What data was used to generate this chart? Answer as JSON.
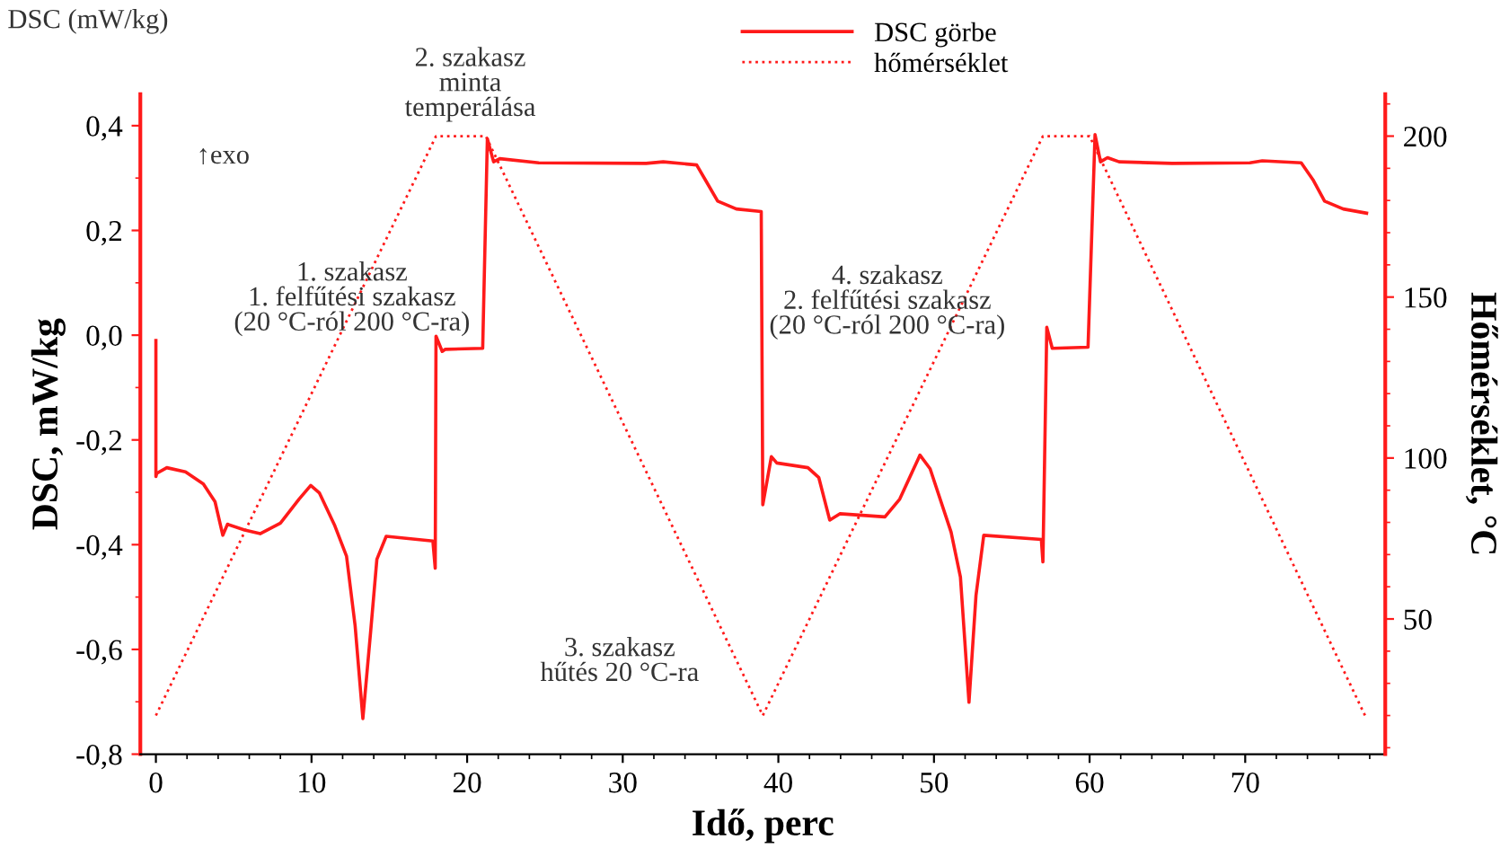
{
  "chart_data": {
    "type": "line",
    "xlabel": "Idő, perc",
    "ylabel": "DSC, mW/kg",
    "y2label": "Hőmérséklet, °C",
    "annotations": [
      "DSC (mW/kg)",
      "↑exo",
      "1. szakasz\n1. felfűtési szakasz\n(20 °C-ról 200 °C-ra)",
      "2. szakasz\nminta\ntemperálása",
      "3. szakasz\nhűtés 20 °C-ra",
      "4. szakasz\n2. felfűtési szakasz\n(20 °C-ról 200 °C-ra)"
    ],
    "xlim": [
      -1,
      79
    ],
    "xticks": [
      0,
      10,
      20,
      30,
      40,
      50,
      60,
      70
    ],
    "ylim": [
      -0.8,
      0.46
    ],
    "yticks": [
      {
        "value": -0.8,
        "label": "-0,8"
      },
      {
        "value": -0.6,
        "label": "-0,6"
      },
      {
        "value": -0.4,
        "label": "-0,4"
      },
      {
        "value": -0.2,
        "label": "-0,2"
      },
      {
        "value": 0.0,
        "label": "0,0"
      },
      {
        "value": 0.2,
        "label": "0,2"
      },
      {
        "value": 0.4,
        "label": "0,4"
      }
    ],
    "y2lim": [
      8,
      213
    ],
    "y2ticks": [
      50,
      100,
      150,
      200
    ],
    "grid": false,
    "legend": "top",
    "series": [
      {
        "name": "DSC görbe",
        "color": "#ff1a1a",
        "line_style": "solid",
        "x": [
          0,
          0,
          0.05,
          0.7,
          1.9,
          3.05,
          3.8,
          4.3,
          4.6,
          5.7,
          6.7,
          8.0,
          9.2,
          9.95,
          10.5,
          11.5,
          12.25,
          12.8,
          13.3,
          13.8,
          14.2,
          14.8,
          17.8,
          17.95,
          18.0,
          18.4,
          18.6,
          21.0,
          21.3,
          21.7,
          22.1,
          24.6,
          31.5,
          32.6,
          34.75,
          35.3,
          36.1,
          37.3,
          38.9,
          39.0,
          39.55,
          39.9,
          41.9,
          42.6,
          43.3,
          43.95,
          46.85,
          47.8,
          49.1,
          49.75,
          51.1,
          51.7,
          52.25,
          52.7,
          53.2,
          56.9,
          57.0,
          57.25,
          57.6,
          59.9,
          60.35,
          60.7,
          61.15,
          61.9,
          65.3,
          70.3,
          71.1,
          73.6,
          74.35,
          75.1,
          76.3,
          77.8
        ],
        "values": [
          -0.01,
          -0.27,
          -0.264,
          -0.253,
          -0.261,
          -0.284,
          -0.318,
          -0.382,
          -0.361,
          -0.372,
          -0.379,
          -0.359,
          -0.313,
          -0.287,
          -0.301,
          -0.364,
          -0.422,
          -0.554,
          -0.732,
          -0.566,
          -0.428,
          -0.384,
          -0.393,
          -0.445,
          -0.002,
          -0.031,
          -0.027,
          -0.025,
          0.375,
          0.331,
          0.337,
          0.329,
          0.328,
          0.331,
          0.325,
          0.297,
          0.256,
          0.241,
          0.236,
          -0.324,
          -0.232,
          -0.244,
          -0.253,
          -0.272,
          -0.353,
          -0.341,
          -0.347,
          -0.313,
          -0.229,
          -0.255,
          -0.376,
          -0.462,
          -0.701,
          -0.497,
          -0.382,
          -0.39,
          -0.433,
          0.015,
          -0.025,
          -0.023,
          0.383,
          0.331,
          0.339,
          0.331,
          0.328,
          0.329,
          0.333,
          0.329,
          0.297,
          0.256,
          0.241,
          0.233
        ]
      },
      {
        "name": "hőmérséklet",
        "color": "#ff1a1a",
        "line_style": "dotted",
        "axis": "y2",
        "x": [
          0,
          18,
          21.2,
          39,
          57,
          60,
          77.7
        ],
        "values": [
          20,
          200,
          200,
          20,
          200,
          200,
          20
        ]
      }
    ]
  }
}
